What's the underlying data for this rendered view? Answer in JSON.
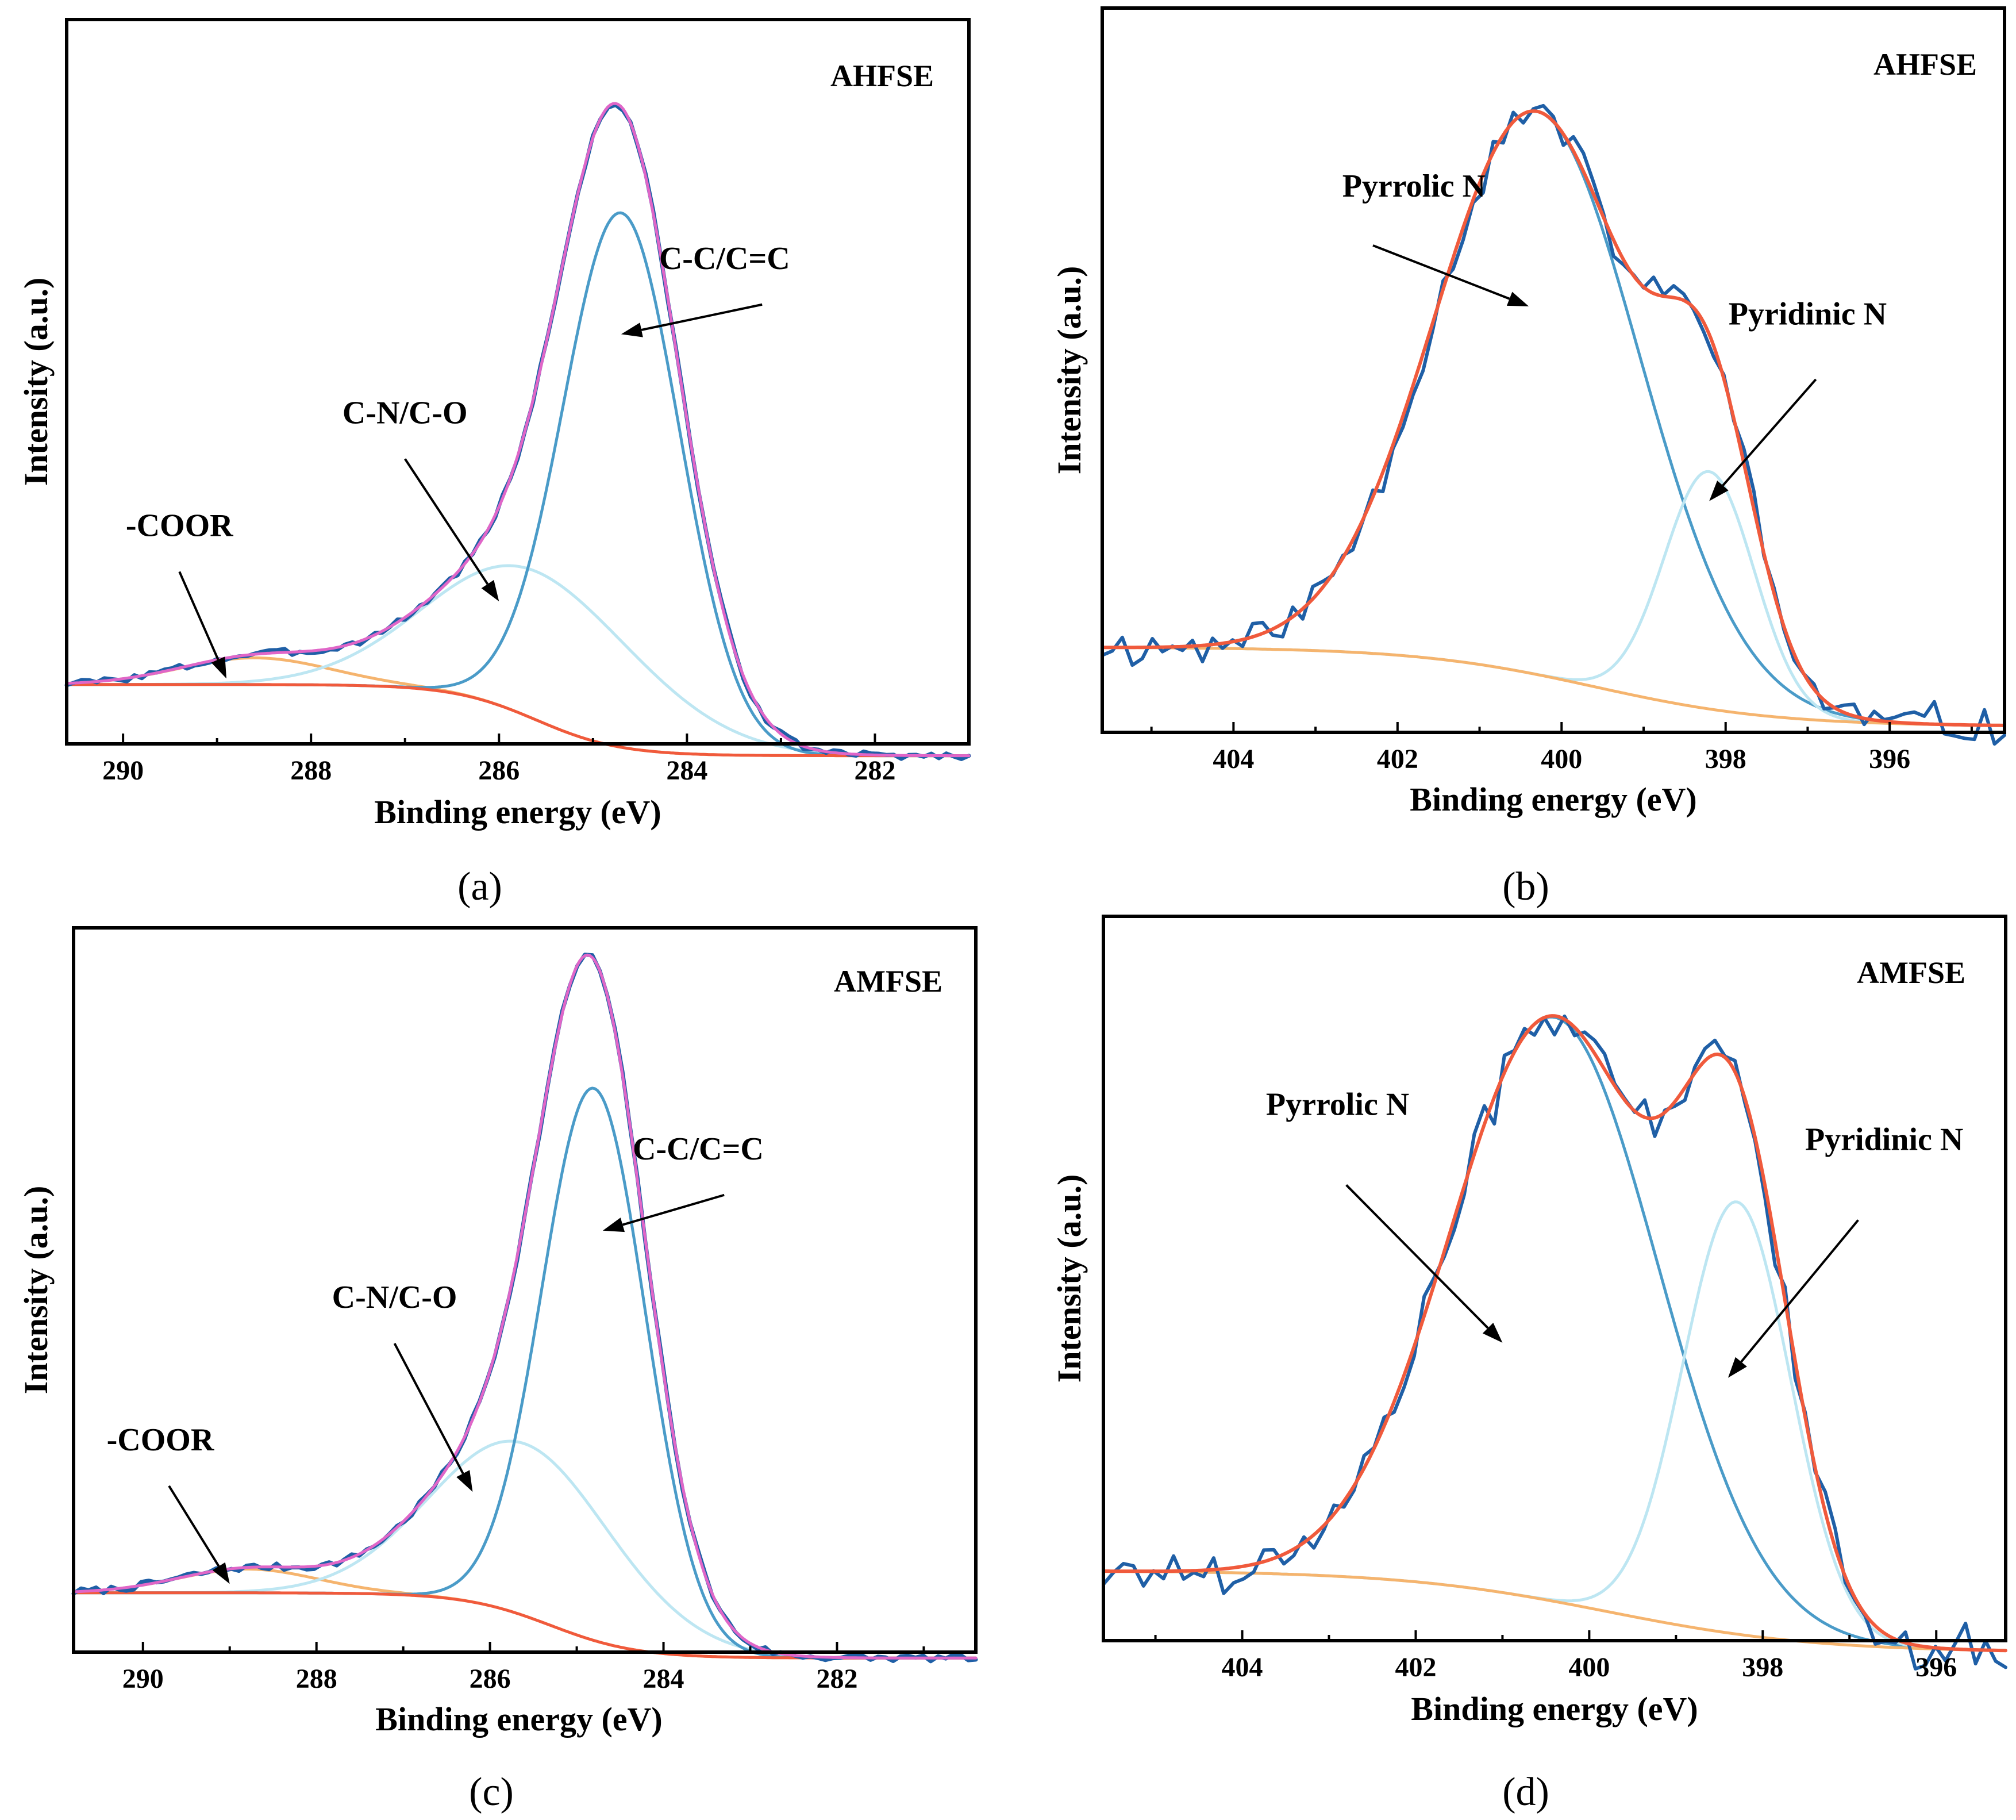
{
  "colors": {
    "raw_data": "#1f5fa6",
    "fit_envelope_c1s": "#e066c8",
    "fit_envelope_n1s": "#f05a3c",
    "main_peak": "#4a9bc8",
    "secondary_peak": "#bde6f2",
    "minor_peak": "#f5b46e",
    "background": "#f05a3c"
  },
  "chart_data": [
    {
      "type": "line",
      "panel": "(a)",
      "sample": "AHFSE",
      "xlabel": "Binding energy (eV)",
      "ylabel": "Intensity (a.u.)",
      "xlim": [
        290.6,
        281
      ],
      "ylim": [
        -0.1,
        1.12
      ],
      "xticks": [
        290,
        288,
        286,
        284,
        282
      ],
      "grid": false,
      "legend": "none",
      "background": {
        "left": 0.0,
        "right": -0.12,
        "center": 285.6,
        "width": 0.45
      },
      "peaks": [
        {
          "center": 288.6,
          "height": 0.045,
          "width": 0.8
        },
        {
          "center": 285.6,
          "height": 0.25,
          "width": 1.1
        },
        {
          "center": 284.7,
          "height": 0.9,
          "width": 0.62
        }
      ],
      "noise": {
        "amplitude": 0.006,
        "seed": 3
      },
      "annotations": [
        {
          "text": "-COOR",
          "label_x": 289.4,
          "label_y": 0.25,
          "arrow_from": [
            289.4,
            0.19
          ],
          "arrow_to": [
            288.9,
            0.01
          ]
        },
        {
          "text": "C-N/C-O",
          "label_x": 287.0,
          "label_y": 0.44,
          "arrow_from": [
            287.0,
            0.38
          ],
          "arrow_to": [
            286.0,
            0.14
          ]
        },
        {
          "text": "C-C/C=C",
          "label_x": 283.6,
          "label_y": 0.7,
          "arrow_from": [
            283.2,
            0.64
          ],
          "arrow_to": [
            284.7,
            0.59
          ]
        }
      ]
    },
    {
      "type": "line",
      "panel": "(b)",
      "sample": "AHFSE",
      "xlabel": "Binding energy (eV)",
      "ylabel": "Intensity (a.u.)",
      "xlim": [
        405.6,
        394.6
      ],
      "ylim": [
        -0.14,
        1.05
      ],
      "xticks": [
        404,
        402,
        400,
        398,
        396
      ],
      "grid": false,
      "legend": "none",
      "background": {
        "left": 0.0,
        "right": -0.13,
        "center": 399.6,
        "width": 1.1
      },
      "peaks": [
        {
          "center": 400.3,
          "height": 0.925,
          "width": 1.25
        },
        {
          "center": 398.2,
          "height": 0.39,
          "width": 0.55
        }
      ],
      "noise": {
        "amplitude": 0.03,
        "seed": 11
      },
      "annotations": [
        {
          "text": "Pyrrolic N",
          "label_x": 401.8,
          "label_y": 0.74,
          "arrow_from": [
            402.3,
            0.66
          ],
          "arrow_to": [
            400.4,
            0.56
          ]
        },
        {
          "text": "Pyridinic N",
          "label_x": 397.0,
          "label_y": 0.53,
          "arrow_from": [
            396.9,
            0.44
          ],
          "arrow_to": [
            398.2,
            0.24
          ]
        }
      ]
    },
    {
      "type": "line",
      "panel": "(c)",
      "sample": "AMFSE",
      "xlabel": "Binding energy (eV)",
      "ylabel": "Intensity (a.u.)",
      "xlim": [
        290.8,
        280.4
      ],
      "ylim": [
        -0.1,
        1.12
      ],
      "xticks": [
        290,
        288,
        286,
        284,
        282
      ],
      "grid": false,
      "legend": "none",
      "background": {
        "left": 0.0,
        "right": -0.11,
        "center": 285.3,
        "width": 0.5
      },
      "peaks": [
        {
          "center": 288.8,
          "height": 0.04,
          "width": 0.8
        },
        {
          "center": 285.6,
          "height": 0.29,
          "width": 1.05
        },
        {
          "center": 284.8,
          "height": 0.93,
          "width": 0.6
        }
      ],
      "noise": {
        "amplitude": 0.006,
        "seed": 7
      },
      "annotations": [
        {
          "text": "-COOR",
          "label_x": 289.8,
          "label_y": 0.24,
          "arrow_from": [
            289.7,
            0.18
          ],
          "arrow_to": [
            289.0,
            0.015
          ]
        },
        {
          "text": "C-N/C-O",
          "label_x": 287.1,
          "label_y": 0.48,
          "arrow_from": [
            287.1,
            0.42
          ],
          "arrow_to": [
            286.2,
            0.17
          ]
        },
        {
          "text": "C-C/C=C",
          "label_x": 283.6,
          "label_y": 0.73,
          "arrow_from": [
            283.3,
            0.67
          ],
          "arrow_to": [
            284.7,
            0.61
          ]
        }
      ]
    },
    {
      "type": "line",
      "panel": "(d)",
      "sample": "AMFSE",
      "xlabel": "Binding energy (eV)",
      "ylabel": "Intensity (a.u.)",
      "xlim": [
        405.6,
        395.2
      ],
      "ylim": [
        -0.12,
        1.12
      ],
      "xticks": [
        404,
        402,
        400,
        398,
        396
      ],
      "grid": false,
      "legend": "none",
      "background": {
        "left": 0.0,
        "right": -0.14,
        "center": 399.8,
        "width": 1.2
      },
      "peaks": [
        {
          "center": 400.4,
          "height": 1.0,
          "width": 1.2
        },
        {
          "center": 398.3,
          "height": 0.74,
          "width": 0.62
        }
      ],
      "noise": {
        "amplitude": 0.035,
        "seed": 17
      },
      "annotations": [
        {
          "text": "Pyrrolic N",
          "label_x": 402.9,
          "label_y": 0.78,
          "arrow_from": [
            402.8,
            0.66
          ],
          "arrow_to": [
            401.0,
            0.39
          ]
        },
        {
          "text": "Pyridinic N",
          "label_x": 396.6,
          "label_y": 0.72,
          "arrow_from": [
            396.9,
            0.6
          ],
          "arrow_to": [
            398.4,
            0.33
          ]
        }
      ]
    }
  ]
}
